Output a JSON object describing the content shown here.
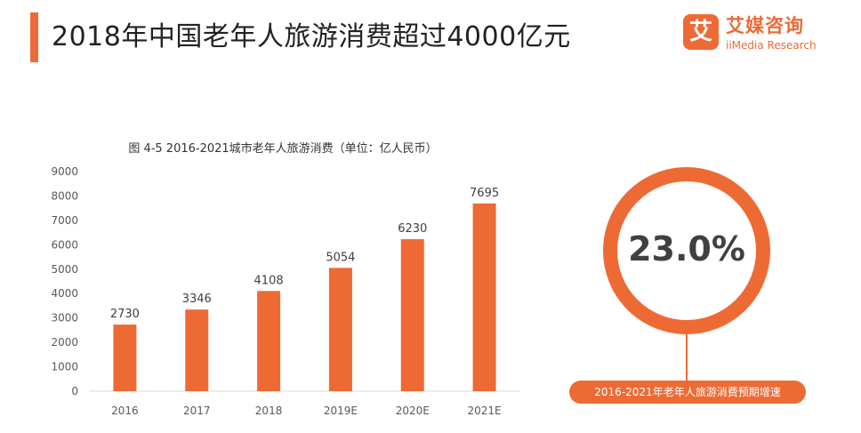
{
  "header": {
    "title": "2018年中国老年人旅游消费超过4000亿元"
  },
  "logo": {
    "mark": "艾",
    "name_cn": "艾媒咨询",
    "name_en": "iiMedia Research"
  },
  "colors": {
    "accent": "#ee6a35",
    "bar": "#ee6a35",
    "axis_text": "#595959",
    "ring_text": "#404040"
  },
  "chart_data": {
    "type": "bar",
    "title": "图 4-5 2016-2021城市老年人旅游消费（单位：亿人民币）",
    "categories": [
      "2016",
      "2017",
      "2018",
      "2019E",
      "2020E",
      "2021E"
    ],
    "values": [
      2730,
      3346,
      4108,
      5054,
      6230,
      7695
    ],
    "ylim": [
      0,
      9000
    ],
    "yticks": [
      0,
      1000,
      2000,
      3000,
      4000,
      5000,
      6000,
      7000,
      8000,
      9000
    ],
    "xlabel": "",
    "ylabel": "",
    "grid": false,
    "data_labels": true
  },
  "growth": {
    "value": "23.0%",
    "caption": "2016-2021年老年人旅游消费预期增速"
  }
}
